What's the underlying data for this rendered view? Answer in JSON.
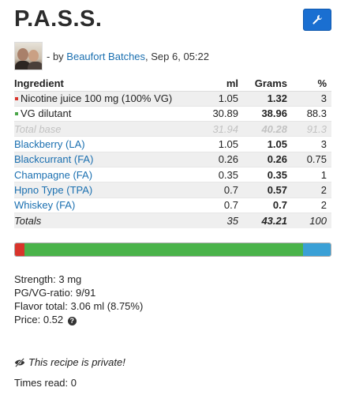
{
  "recipe": {
    "title": "P.A.S.S.",
    "by_prefix": "- by",
    "author": "Beaufort Batches",
    "date": "Sep 6, 05:22"
  },
  "table": {
    "headers": {
      "ingredient": "Ingredient",
      "ml": "ml",
      "grams": "Grams",
      "percent": "%"
    },
    "rows": [
      {
        "name": "Nicotine juice 100 mg (100% VG)",
        "ml": "1.05",
        "grams": "1.32",
        "percent": "3",
        "marker_color": "#d9342b"
      },
      {
        "name": "VG dilutant",
        "ml": "30.89",
        "grams": "38.96",
        "percent": "88.3",
        "marker_color": "#4aa548"
      },
      {
        "name": "Total base",
        "ml": "31.94",
        "grams": "40.28",
        "percent": "91.3"
      },
      {
        "name": "Blackberry",
        "tag": "LA",
        "ml": "1.05",
        "grams": "1.05",
        "percent": "3"
      },
      {
        "name": "Blackcurrant",
        "tag": "FA",
        "ml": "0.26",
        "grams": "0.26",
        "percent": "0.75"
      },
      {
        "name": "Champagne",
        "tag": "FA",
        "ml": "0.35",
        "grams": "0.35",
        "percent": "1"
      },
      {
        "name": "Hpno Type",
        "tag": "TPA",
        "ml": "0.7",
        "grams": "0.57",
        "percent": "2"
      },
      {
        "name": "Whiskey",
        "tag": "FA",
        "ml": "0.7",
        "grams": "0.7",
        "percent": "2"
      }
    ],
    "totals": {
      "label": "Totals",
      "ml": "35",
      "grams": "43.21",
      "percent": "100"
    }
  },
  "ratio_bar": [
    {
      "label": "nicotine",
      "percent": 3,
      "color": "#d9342b"
    },
    {
      "label": "vg",
      "percent": 88.3,
      "color": "#4ab34a"
    },
    {
      "label": "flavor",
      "percent": 8.75,
      "color": "#3aa0d6"
    }
  ],
  "stats": {
    "strength": "Strength: 3 mg",
    "pg_vg": "PG/VG-ratio: 9/91",
    "flavor_total": "Flavor total: 3.06 ml (8.75%)",
    "price": "Price: 0.52"
  },
  "privacy_note": "This recipe is private!",
  "times_read": "Times read: 0",
  "icons": {
    "tool_button": "wrench-icon",
    "price_help": "question-circle-icon",
    "privacy": "eye-slash-icon"
  }
}
